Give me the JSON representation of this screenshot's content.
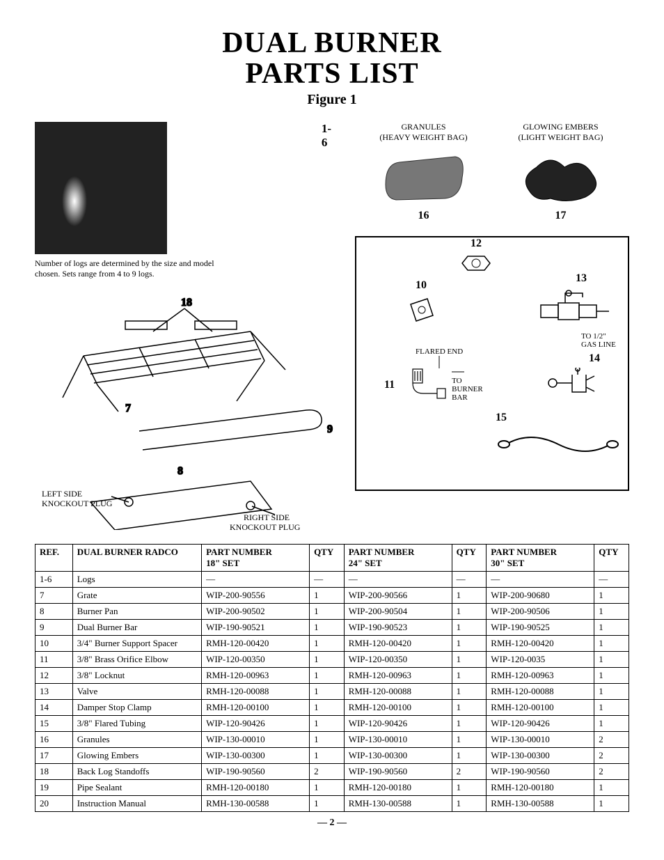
{
  "title_line1": "DUAL BURNER",
  "title_line2": "PARTS LIST",
  "figure_label": "Figure 1",
  "left": {
    "range_label": "1-6",
    "photo_caption": "Number of logs are determined by the size and model chosen. Sets range from 4 to 9 logs.",
    "callouts": {
      "c18": "18",
      "c7": "7",
      "c9": "9",
      "c8": "8",
      "left_label_top": "LEFT SIDE",
      "left_label_bot": "KNOCKOUT PLUG",
      "right_label_top": "RIGHT SIDE",
      "right_label_bot": "KNOCKOUT PLUG"
    }
  },
  "right": {
    "granules_top": "GRANULES",
    "granules_sub": "(HEAVY WEIGHT BAG)",
    "granules_num": "16",
    "embers_top": "GLOWING EMBERS",
    "embers_sub": "(LIGHT WEIGHT BAG)",
    "embers_num": "17",
    "box": {
      "c12": "12",
      "c10": "10",
      "c13": "13",
      "to_gas_top": "TO 1/2\"",
      "to_gas_bot": "GAS LINE",
      "flared_end": "FLARED END",
      "c11": "11",
      "to_burner_top": "TO",
      "to_burner_mid": "BURNER",
      "to_burner_bot": "BAR",
      "c14": "14",
      "c15": "15"
    }
  },
  "table": {
    "headers": {
      "ref": "REF.",
      "desc": "DUAL BURNER RADCO",
      "pn18_top": "PART NUMBER",
      "pn18_sub": "18\" SET",
      "qty": "QTY",
      "pn24_top": "PART NUMBER",
      "pn24_sub": "24\" SET",
      "pn30_top": "PART NUMBER",
      "pn30_sub": "30\" SET"
    },
    "rows": [
      {
        "ref": "1-6",
        "desc": "Logs",
        "pn18": "—",
        "q18": "—",
        "pn24": "—",
        "q24": "—",
        "pn30": "—",
        "q30": "—"
      },
      {
        "ref": "7",
        "desc": "Grate",
        "pn18": "WIP-200-90556",
        "q18": "1",
        "pn24": "WIP-200-90566",
        "q24": "1",
        "pn30": "WIP-200-90680",
        "q30": "1"
      },
      {
        "ref": "8",
        "desc": "Burner Pan",
        "pn18": "WIP-200-90502",
        "q18": "1",
        "pn24": "WIP-200-90504",
        "q24": "1",
        "pn30": "WIP-200-90506",
        "q30": "1"
      },
      {
        "ref": "9",
        "desc": "Dual Burner Bar",
        "pn18": "WIP-190-90521",
        "q18": "1",
        "pn24": "WIP-190-90523",
        "q24": "1",
        "pn30": "WIP-190-90525",
        "q30": "1"
      },
      {
        "ref": "10",
        "desc": "3/4\" Burner Support Spacer",
        "pn18": "RMH-120-00420",
        "q18": "1",
        "pn24": "RMH-120-00420",
        "q24": "1",
        "pn30": "RMH-120-00420",
        "q30": "1"
      },
      {
        "ref": "11",
        "desc": "3/8\" Brass Orifice Elbow",
        "pn18": "WIP-120-00350",
        "q18": "1",
        "pn24": "WIP-120-00350",
        "q24": "1",
        "pn30": "WIP-120-0035",
        "q30": "1"
      },
      {
        "ref": "12",
        "desc": "3/8\" Locknut",
        "pn18": "RMH-120-00963",
        "q18": "1",
        "pn24": "RMH-120-00963",
        "q24": "1",
        "pn30": "RMH-120-00963",
        "q30": "1"
      },
      {
        "ref": "13",
        "desc": "Valve",
        "pn18": "RMH-120-00088",
        "q18": "1",
        "pn24": "RMH-120-00088",
        "q24": "1",
        "pn30": "RMH-120-00088",
        "q30": "1"
      },
      {
        "ref": "14",
        "desc": "Damper Stop Clamp",
        "pn18": "RMH-120-00100",
        "q18": "1",
        "pn24": "RMH-120-00100",
        "q24": "1",
        "pn30": "RMH-120-00100",
        "q30": "1"
      },
      {
        "ref": "15",
        "desc": "3/8\" Flared Tubing",
        "pn18": "WIP-120-90426",
        "q18": "1",
        "pn24": "WIP-120-90426",
        "q24": "1",
        "pn30": "WIP-120-90426",
        "q30": "1"
      },
      {
        "ref": "16",
        "desc": "Granules",
        "pn18": "WIP-130-00010",
        "q18": "1",
        "pn24": "WIP-130-00010",
        "q24": "1",
        "pn30": "WIP-130-00010",
        "q30": "2"
      },
      {
        "ref": "17",
        "desc": "Glowing Embers",
        "pn18": "WIP-130-00300",
        "q18": "1",
        "pn24": "WIP-130-00300",
        "q24": "1",
        "pn30": "WIP-130-00300",
        "q30": "2"
      },
      {
        "ref": "18",
        "desc": "Back Log Standoffs",
        "pn18": "WIP-190-90560",
        "q18": "2",
        "pn24": "WIP-190-90560",
        "q24": "2",
        "pn30": "WIP-190-90560",
        "q30": "2"
      },
      {
        "ref": "19",
        "desc": "Pipe Sealant",
        "pn18": "RMH-120-00180",
        "q18": "1",
        "pn24": "RMH-120-00180",
        "q24": "1",
        "pn30": "RMH-120-00180",
        "q30": "1"
      },
      {
        "ref": "20",
        "desc": "Instruction Manual",
        "pn18": "RMH-130-00588",
        "q18": "1",
        "pn24": "RMH-130-00588",
        "q24": "1",
        "pn30": "RMH-130-00588",
        "q30": "1"
      }
    ]
  },
  "page_number": "— 2 —"
}
